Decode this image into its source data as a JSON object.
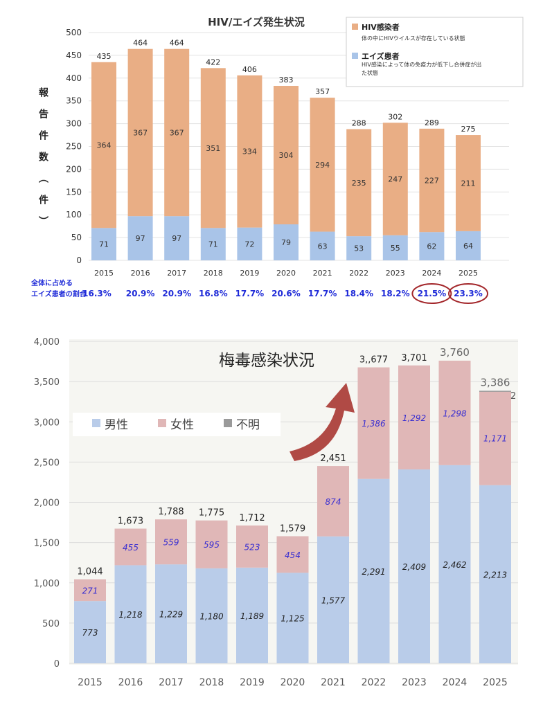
{
  "chart_data": [
    {
      "type": "bar",
      "stacked": true,
      "title": "HIV/エイズ発生状況",
      "ylabel": "報告件数（件）",
      "ylim": [
        0,
        500
      ],
      "yticks": [
        0,
        50,
        100,
        150,
        200,
        250,
        300,
        350,
        400,
        450,
        500
      ],
      "categories": [
        "2015",
        "2016",
        "2017",
        "2018",
        "2019",
        "2020",
        "2021",
        "2022",
        "2023",
        "2024",
        "2025"
      ],
      "series": [
        {
          "name": "エイズ患者",
          "description": "HIV感染によって体の免疫力が低下し合併症が出た状態",
          "color": "#A9C4E8",
          "values": [
            71,
            97,
            97,
            71,
            72,
            79,
            63,
            53,
            55,
            62,
            64
          ]
        },
        {
          "name": "HIV感染者",
          "description": "体の中にHIVウイルスが存在している状態",
          "color": "#E9AE85",
          "values": [
            364,
            367,
            367,
            351,
            334,
            304,
            294,
            235,
            247,
            227,
            211
          ]
        }
      ],
      "totals": [
        435,
        464,
        464,
        422,
        406,
        383,
        357,
        288,
        302,
        289,
        275
      ],
      "ratio_label": [
        "全体に占める",
        "エイズ患者の割合"
      ],
      "ratios": [
        "16.3%",
        "20.9%",
        "20.9%",
        "16.8%",
        "17.7%",
        "20.6%",
        "17.7%",
        "18.4%",
        "18.2%",
        "21.5%",
        "23.3%"
      ],
      "highlighted": [
        "2024",
        "2025"
      ],
      "legend": "top-right"
    },
    {
      "type": "bar",
      "stacked": true,
      "title": "梅毒感染状況",
      "ylim": [
        0,
        4000
      ],
      "yticks": [
        "0",
        "500",
        "1,000",
        "1,500",
        "2,000",
        "2,500",
        "3,000",
        "3,500",
        "4,000"
      ],
      "ytick_values": [
        0,
        500,
        1000,
        1500,
        2000,
        2500,
        3000,
        3500,
        4000
      ],
      "categories": [
        "2015",
        "2016",
        "2017",
        "2018",
        "2019",
        "2020",
        "2021",
        "2022",
        "2023",
        "2024",
        "2025"
      ],
      "series": [
        {
          "name": "男性",
          "color": "#B9CCE9",
          "values": [
            773,
            1218,
            1229,
            1180,
            1189,
            1125,
            1577,
            2291,
            2409,
            2462,
            2213
          ]
        },
        {
          "name": "女性",
          "color": "#E0B7B7",
          "values": [
            271,
            455,
            559,
            595,
            523,
            454,
            874,
            1386,
            1292,
            1298,
            1171
          ]
        },
        {
          "name": "不明",
          "color": "#9A9A9A",
          "values": [
            0,
            0,
            0,
            0,
            0,
            0,
            0,
            0,
            0,
            0,
            2
          ]
        }
      ],
      "male_labels": [
        "773",
        "1,218",
        "1,229",
        "1,180",
        "1,189",
        "1,125",
        "1,577",
        "2,291",
        "2,409",
        "2,462",
        "2,213"
      ],
      "female_labels": [
        "271",
        "455",
        "559",
        "595",
        "523",
        "454",
        "874",
        "1,386",
        "1,292",
        "1,298",
        "1,171"
      ],
      "totals": [
        "1,044",
        "1,673",
        "1,788",
        "1,775",
        "1,712",
        "1,579",
        "2,451",
        "3,,677",
        "3,701",
        "3,760",
        "3,386"
      ],
      "unknown_label": "2",
      "legend": "top-left"
    }
  ]
}
